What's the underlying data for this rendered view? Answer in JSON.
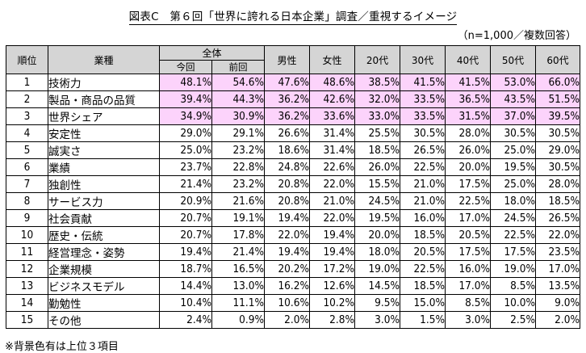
{
  "title": "図表C　第６回「世界に誇れる日本企業」調査／重視するイメージ",
  "note": "（n=1,000／複数回答）",
  "footnote": "※背景色有は上位３項目",
  "headers": {
    "rank": "順位",
    "item": "業種",
    "overall": "全体",
    "current": "今回",
    "previous": "前回",
    "columns": [
      "男性",
      "女性",
      "20代",
      "30代",
      "40代",
      "50代",
      "60代"
    ]
  },
  "highlight_color": "#fcd3fb",
  "rows": [
    {
      "rank": "1",
      "item": "技術力",
      "values": [
        "48.1%",
        "54.6%",
        "47.6%",
        "48.6%",
        "38.5%",
        "41.5%",
        "41.5%",
        "53.0%",
        "66.0%"
      ],
      "highlight": true
    },
    {
      "rank": "2",
      "item": "製品・商品の品質",
      "values": [
        "39.4%",
        "44.3%",
        "36.2%",
        "42.6%",
        "32.0%",
        "33.5%",
        "36.5%",
        "43.5%",
        "51.5%"
      ],
      "highlight": true
    },
    {
      "rank": "3",
      "item": "世界シェア",
      "values": [
        "34.9%",
        "30.9%",
        "36.2%",
        "33.6%",
        "33.0%",
        "33.5%",
        "31.5%",
        "37.0%",
        "39.5%"
      ],
      "highlight": true
    },
    {
      "rank": "4",
      "item": "安定性",
      "values": [
        "29.0%",
        "29.1%",
        "26.6%",
        "31.4%",
        "25.5%",
        "30.5%",
        "28.0%",
        "30.5%",
        "30.5%"
      ]
    },
    {
      "rank": "5",
      "item": "誠実さ",
      "values": [
        "25.0%",
        "23.2%",
        "18.6%",
        "31.4%",
        "18.5%",
        "26.5%",
        "26.0%",
        "25.0%",
        "29.0%"
      ]
    },
    {
      "rank": "6",
      "item": "業績",
      "values": [
        "23.7%",
        "22.8%",
        "24.8%",
        "22.6%",
        "26.0%",
        "22.5%",
        "20.0%",
        "19.5%",
        "30.5%"
      ]
    },
    {
      "rank": "7",
      "item": "独創性",
      "values": [
        "21.4%",
        "23.2%",
        "20.8%",
        "22.0%",
        "15.5%",
        "21.0%",
        "17.5%",
        "25.0%",
        "28.0%"
      ]
    },
    {
      "rank": "8",
      "item": "サービス力",
      "values": [
        "20.9%",
        "21.6%",
        "20.8%",
        "21.0%",
        "24.5%",
        "21.0%",
        "22.5%",
        "18.0%",
        "18.5%"
      ]
    },
    {
      "rank": "9",
      "item": "社会貢献",
      "values": [
        "20.7%",
        "19.1%",
        "19.4%",
        "22.0%",
        "19.5%",
        "16.0%",
        "17.0%",
        "24.5%",
        "26.5%"
      ]
    },
    {
      "rank": "10",
      "item": "歴史・伝統",
      "values": [
        "20.7%",
        "17.8%",
        "22.0%",
        "19.4%",
        "20.0%",
        "18.5%",
        "20.5%",
        "22.5%",
        "22.0%"
      ]
    },
    {
      "rank": "11",
      "item": "経営理念・姿勢",
      "values": [
        "19.4%",
        "21.4%",
        "19.4%",
        "19.4%",
        "18.0%",
        "20.5%",
        "17.5%",
        "17.5%",
        "23.5%"
      ]
    },
    {
      "rank": "12",
      "item": "企業規模",
      "values": [
        "18.7%",
        "16.5%",
        "20.2%",
        "17.2%",
        "19.0%",
        "22.5%",
        "16.0%",
        "19.0%",
        "17.0%"
      ]
    },
    {
      "rank": "13",
      "item": "ビジネスモデル",
      "values": [
        "14.4%",
        "13.0%",
        "16.2%",
        "12.6%",
        "14.5%",
        "18.5%",
        "17.0%",
        "8.5%",
        "13.5%"
      ]
    },
    {
      "rank": "14",
      "item": "勤勉性",
      "values": [
        "10.4%",
        "11.1%",
        "10.6%",
        "10.2%",
        "9.5%",
        "15.0%",
        "8.5%",
        "10.0%",
        "9.0%"
      ]
    },
    {
      "rank": "15",
      "item": "その他",
      "values": [
        "2.4%",
        "0.9%",
        "2.0%",
        "2.8%",
        "3.0%",
        "1.5%",
        "3.0%",
        "2.5%",
        "2.0%"
      ]
    }
  ]
}
